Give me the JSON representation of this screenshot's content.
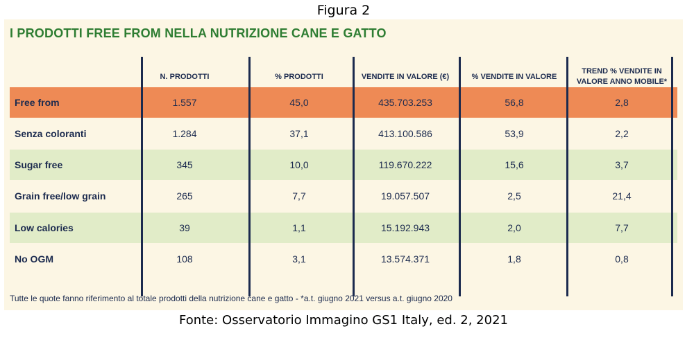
{
  "figure_label": "Figura 2",
  "source": "Fonte: Osservatorio Immagino GS1 Italy, ed. 2, 2021",
  "colors": {
    "panel_bg": "#fcf6e4",
    "title": "#2e7d32",
    "text": "#1b2a4e",
    "highlight_row": "#ee8a55",
    "green_row": "#e1ecc8",
    "cream_row": "#fcf6e4"
  },
  "chart_data": {
    "type": "table",
    "title": "I PRODOTTI FREE FROM NELLA NUTRIZIONE CANE E GATTO",
    "columns": [
      "",
      "N. PRODOTTI",
      "% PRODOTTI",
      "VENDITE IN VALORE (€)",
      "% VENDITE IN VALORE",
      "TREND % VENDITE IN VALORE ANNO MOBILE*"
    ],
    "rows": [
      {
        "label": "Free from",
        "values": [
          "1.557",
          "45,0",
          "435.703.253",
          "56,8",
          "2,8"
        ],
        "style": "highlight"
      },
      {
        "label": "Senza coloranti",
        "values": [
          "1.284",
          "37,1",
          "413.100.586",
          "53,9",
          "2,2"
        ],
        "style": "cream"
      },
      {
        "label": "Sugar free",
        "values": [
          "345",
          "10,0",
          "119.670.222",
          "15,6",
          "3,7"
        ],
        "style": "green"
      },
      {
        "label": "Grain free/low grain",
        "values": [
          "265",
          "7,7",
          "19.057.507",
          "2,5",
          "21,4"
        ],
        "style": "cream"
      },
      {
        "label": "Low calories",
        "values": [
          "39",
          "1,1",
          "15.192.943",
          "2,0",
          "7,7"
        ],
        "style": "green"
      },
      {
        "label": "No OGM",
        "values": [
          "108",
          "3,1",
          "13.574.371",
          "1,8",
          "0,8"
        ],
        "style": "cream"
      }
    ],
    "note": "Tutte le quote fanno riferimento al totale prodotti della nutrizione cane e gatto - *a.t. giugno 2021 versus a.t. giugno 2020"
  }
}
